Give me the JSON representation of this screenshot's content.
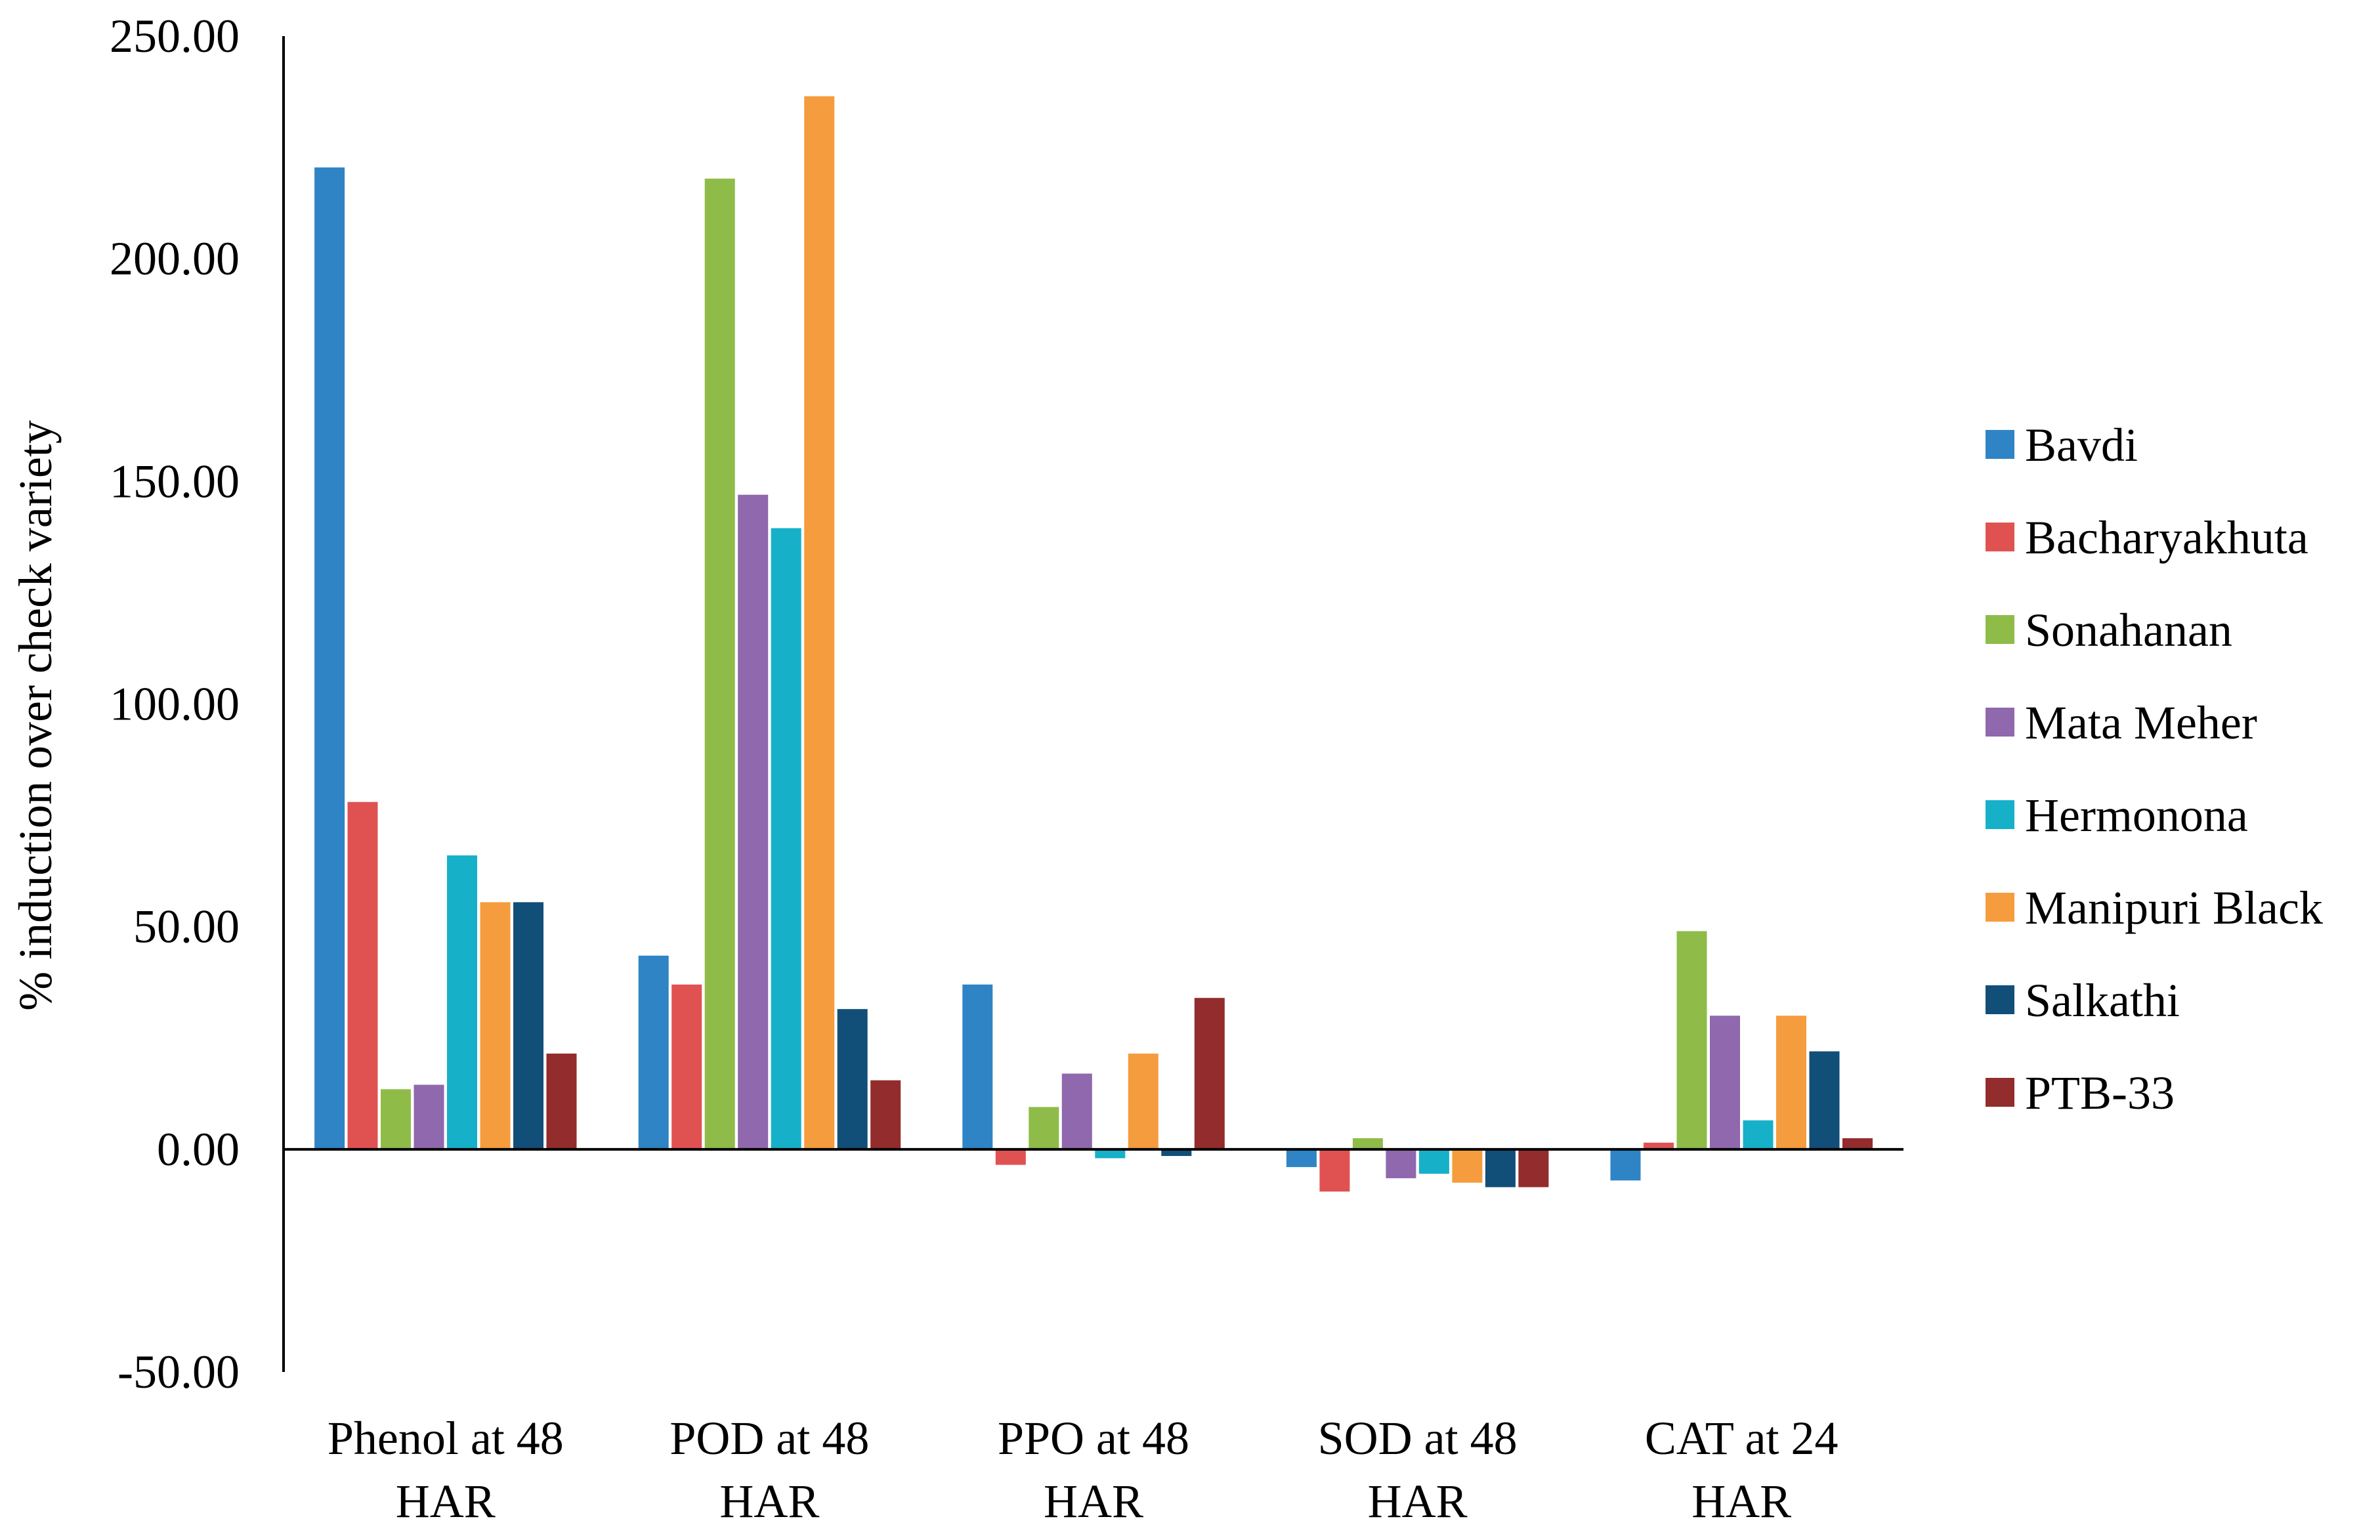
{
  "chart_data": {
    "type": "bar",
    "title": "",
    "xlabel": "",
    "ylabel": "% induction over check variety",
    "ylim": [
      -50,
      250
    ],
    "yticks": [
      250,
      200,
      150,
      100,
      50,
      0,
      -50
    ],
    "ytick_labels": [
      "250.00",
      "200.00",
      "150.00",
      "100.00",
      "50.00",
      "0.00",
      "-50.00"
    ],
    "categories": [
      [
        "Phenol at 48",
        "HAR"
      ],
      [
        "POD at 48",
        "HAR"
      ],
      [
        "PPO at 48",
        "HAR"
      ],
      [
        "SOD at 48",
        "HAR"
      ],
      [
        "CAT at 24",
        "HAR"
      ]
    ],
    "grid": false,
    "legend_position": "right",
    "series": [
      {
        "name": "Bavdi",
        "color": "#2e84c4",
        "values": [
          220.5,
          43.5,
          37.0,
          -4.0,
          -7.0
        ]
      },
      {
        "name": "Bacharyakhuta",
        "color": "#e05252",
        "values": [
          78.0,
          37.0,
          -3.5,
          -9.5,
          1.5
        ]
      },
      {
        "name": "Sonahanan",
        "color": "#8fbc49",
        "values": [
          13.5,
          218.0,
          9.5,
          2.5,
          49.0
        ]
      },
      {
        "name": "Mata Meher",
        "color": "#8f68ad",
        "values": [
          14.5,
          147.0,
          17.0,
          -6.5,
          30.0
        ]
      },
      {
        "name": "Hermonona",
        "color": "#17b0c9",
        "values": [
          66.0,
          139.5,
          -2.0,
          -5.5,
          6.5
        ]
      },
      {
        "name": "Manipuri Black",
        "color": "#f59c3e",
        "values": [
          55.5,
          236.5,
          21.5,
          -7.5,
          30.0
        ]
      },
      {
        "name": "Salkathi",
        "color": "#114e78",
        "values": [
          55.5,
          31.5,
          -1.5,
          -8.5,
          22.0
        ]
      },
      {
        "name": "PTB-33",
        "color": "#932c2c",
        "values": [
          21.5,
          15.5,
          34.0,
          -8.5,
          2.5
        ]
      }
    ]
  }
}
